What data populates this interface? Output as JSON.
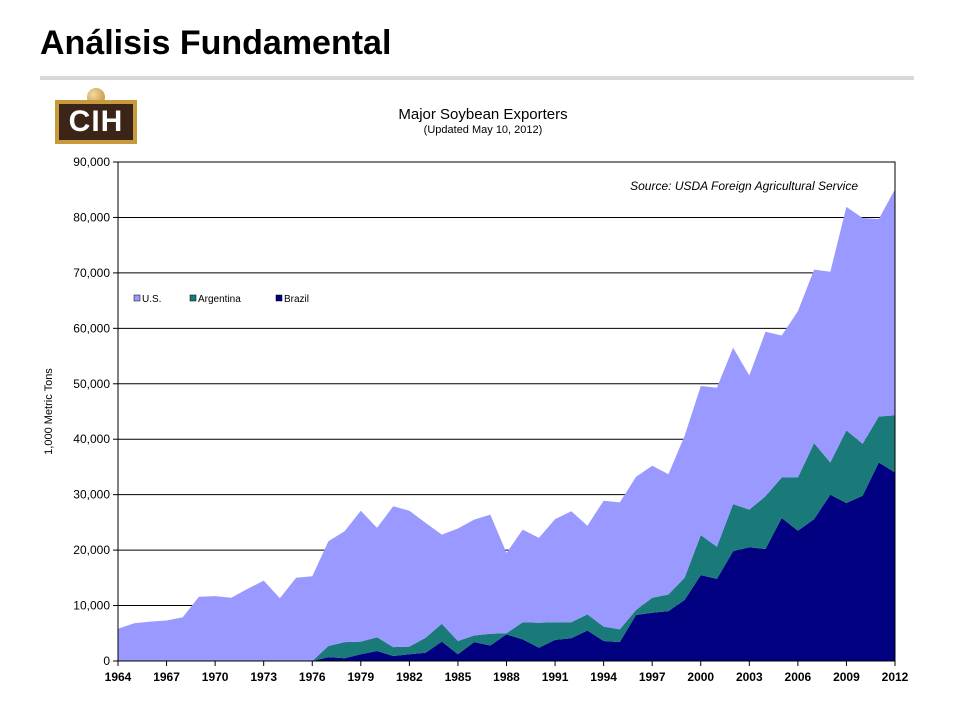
{
  "slide": {
    "title": "Análisis Fundamental",
    "logo_text": "CIH"
  },
  "chart_data": {
    "type": "area",
    "stacked": true,
    "title": "Major Soybean Exporters",
    "subtitle": "(Updated May 10, 2012)",
    "annotation": "Source: USDA Foreign Agricultural Service",
    "ylabel": "1,000 Metric Tons",
    "xlabel": "",
    "ylim": [
      0,
      90000
    ],
    "yticks": [
      0,
      10000,
      20000,
      30000,
      40000,
      50000,
      60000,
      70000,
      80000,
      90000
    ],
    "ytick_labels": [
      "0",
      "10,000",
      "20,000",
      "30,000",
      "40,000",
      "50,000",
      "60,000",
      "70,000",
      "80,000",
      "90,000"
    ],
    "xlim": [
      1964,
      2012
    ],
    "xticks": [
      1964,
      1967,
      1970,
      1973,
      1976,
      1979,
      1982,
      1985,
      1988,
      1991,
      1994,
      1997,
      2000,
      2003,
      2006,
      2009,
      2012
    ],
    "grid": true,
    "legend_position": "top-left",
    "x": [
      1964,
      1965,
      1966,
      1967,
      1968,
      1969,
      1970,
      1971,
      1972,
      1973,
      1974,
      1975,
      1976,
      1977,
      1978,
      1979,
      1980,
      1981,
      1982,
      1983,
      1984,
      1985,
      1986,
      1987,
      1988,
      1989,
      1990,
      1991,
      1992,
      1993,
      1994,
      1995,
      1996,
      1997,
      1998,
      1999,
      2000,
      2001,
      2002,
      2003,
      2004,
      2005,
      2006,
      2007,
      2008,
      2009,
      2010,
      2011,
      2012
    ],
    "series": [
      {
        "name": "Brazil",
        "color": "#000080",
        "values": [
          0,
          0,
          0,
          0,
          0,
          0,
          0,
          0,
          0,
          0,
          0,
          0,
          0,
          700,
          500,
          1200,
          1800,
          900,
          1200,
          1500,
          3500,
          1200,
          3400,
          2800,
          4800,
          3900,
          2400,
          3800,
          4100,
          5500,
          3600,
          3400,
          8300,
          8700,
          9000,
          11000,
          15500,
          14800,
          19800,
          20500,
          20200,
          25800,
          23500,
          25600,
          30000,
          28500,
          29800,
          35800,
          34000
        ]
      },
      {
        "name": "Argentina",
        "color": "#1a7a7a",
        "values": [
          0,
          0,
          0,
          0,
          0,
          0,
          0,
          0,
          0,
          0,
          0,
          0,
          0,
          2000,
          2900,
          2300,
          2500,
          1600,
          1400,
          2700,
          3200,
          2400,
          1200,
          2100,
          200,
          3100,
          4500,
          3200,
          2900,
          2900,
          2600,
          2300,
          900,
          2700,
          3000,
          4000,
          7200,
          5800,
          8500,
          6800,
          9500,
          7300,
          9600,
          13700,
          5800,
          13100,
          9400,
          8300,
          10300
        ]
      },
      {
        "name": "U.S.",
        "color": "#9999ff",
        "values": [
          5800,
          6800,
          7100,
          7300,
          7900,
          11600,
          11700,
          11400,
          13000,
          14500,
          11300,
          15000,
          15300,
          18900,
          20000,
          23600,
          19700,
          25400,
          24500,
          20700,
          16100,
          20300,
          20900,
          21500,
          14500,
          16700,
          15300,
          18600,
          20000,
          16000,
          22700,
          22900,
          24000,
          23800,
          21700,
          25600,
          26900,
          28700,
          28200,
          24200,
          29700,
          25600,
          30000,
          31300,
          34400,
          40300,
          40700,
          35600,
          40800
        ]
      }
    ]
  }
}
